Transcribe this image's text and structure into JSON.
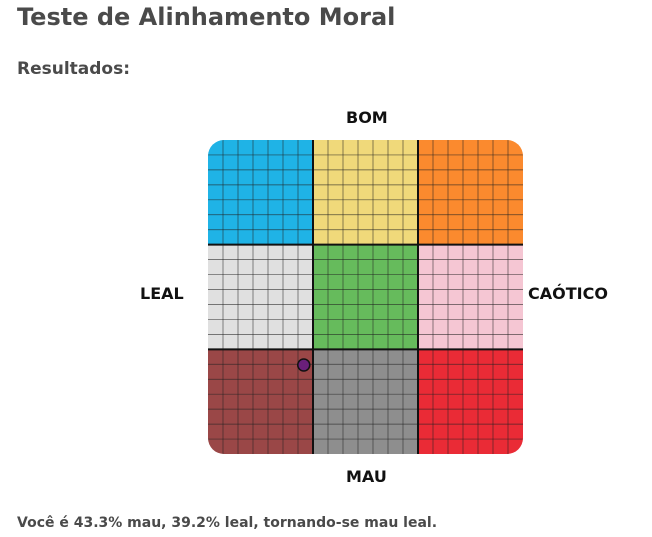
{
  "page": {
    "title": "Teste de Alinhamento Moral",
    "section_heading": "Resultados:",
    "result_text": "Você é 43.3% mau, 39.2% leal, tornando-se mau leal."
  },
  "chart_data": {
    "type": "scatter",
    "title": "",
    "axes": {
      "top_label": "BOM",
      "bottom_label": "MAU",
      "left_label": "LEAL",
      "right_label": "CAÓTICO"
    },
    "grid": true,
    "grid_subdivisions_per_cell": 7,
    "cells": [
      {
        "row": 0,
        "col": 0,
        "color": "#1fb3e6"
      },
      {
        "row": 0,
        "col": 1,
        "color": "#f0d97a"
      },
      {
        "row": 0,
        "col": 2,
        "color": "#fb8a2e"
      },
      {
        "row": 1,
        "col": 0,
        "color": "#e0e0e0"
      },
      {
        "row": 1,
        "col": 1,
        "color": "#66bb5c"
      },
      {
        "row": 1,
        "col": 2,
        "color": "#f5c6d3"
      },
      {
        "row": 2,
        "col": 0,
        "color": "#9a4747"
      },
      {
        "row": 2,
        "col": 1,
        "color": "#8e8e8e"
      },
      {
        "row": 2,
        "col": 2,
        "color": "#ea2b36"
      }
    ],
    "points": [
      {
        "lawful_pct": 39.2,
        "evil_pct": 43.3,
        "color": "#6a1f7a"
      }
    ],
    "line_color": "#222222",
    "x_range": [
      -100,
      100
    ],
    "y_range": [
      -100,
      100
    ]
  }
}
